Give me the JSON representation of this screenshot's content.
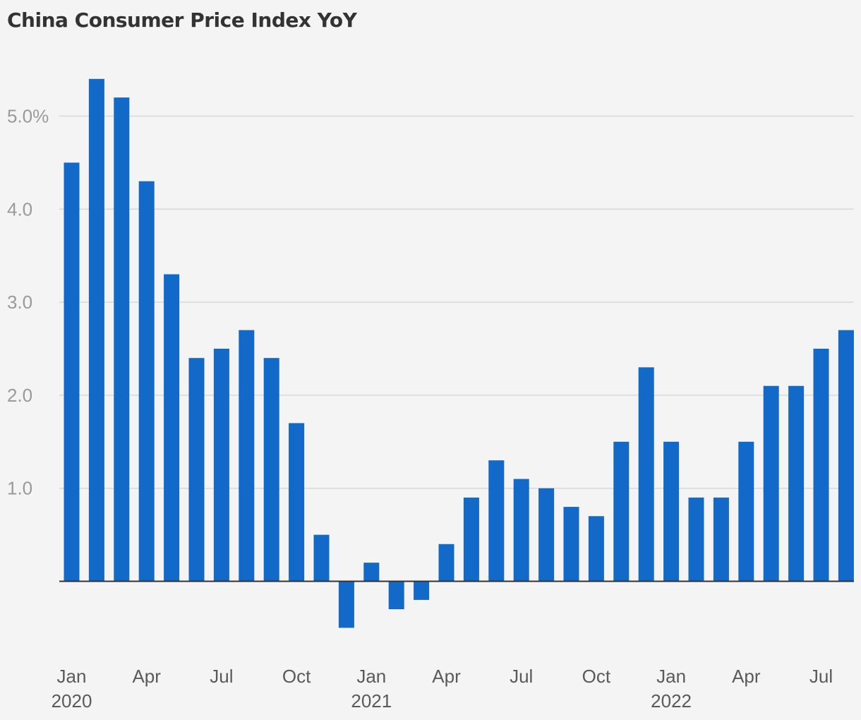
{
  "chart_data": {
    "type": "bar",
    "title": "China Consumer Price Index YoY",
    "xlabel": "",
    "ylabel": "",
    "color": "#1269c7",
    "ylim": [
      -0.8,
      5.9
    ],
    "y_ticks": [
      {
        "value": 1.0,
        "label": "1.0"
      },
      {
        "value": 2.0,
        "label": "2.0"
      },
      {
        "value": 3.0,
        "label": "3.0"
      },
      {
        "value": 4.0,
        "label": "4.0"
      },
      {
        "value": 5.0,
        "label": "5.0%"
      }
    ],
    "categories": [
      "2020-01",
      "2020-02",
      "2020-03",
      "2020-04",
      "2020-05",
      "2020-06",
      "2020-07",
      "2020-08",
      "2020-09",
      "2020-10",
      "2020-11",
      "2020-12",
      "2021-01",
      "2021-02",
      "2021-03",
      "2021-04",
      "2021-05",
      "2021-06",
      "2021-07",
      "2021-08",
      "2021-09",
      "2021-10",
      "2021-11",
      "2021-12",
      "2022-01",
      "2022-02",
      "2022-03",
      "2022-04",
      "2022-05",
      "2022-06",
      "2022-07",
      "2022-08"
    ],
    "values": [
      4.5,
      5.4,
      5.2,
      4.3,
      3.3,
      2.4,
      2.5,
      2.7,
      2.4,
      1.7,
      0.5,
      -0.5,
      0.2,
      -0.3,
      -0.2,
      0.4,
      0.9,
      1.3,
      1.1,
      1.0,
      0.8,
      0.7,
      1.5,
      2.3,
      1.5,
      0.9,
      0.9,
      1.5,
      2.1,
      2.1,
      2.5,
      2.7
    ],
    "x_ticks": [
      {
        "index": 0,
        "label": "Jan",
        "year": "2020"
      },
      {
        "index": 3,
        "label": "Apr"
      },
      {
        "index": 6,
        "label": "Jul"
      },
      {
        "index": 9,
        "label": "Oct"
      },
      {
        "index": 12,
        "label": "Jan",
        "year": "2021"
      },
      {
        "index": 15,
        "label": "Apr"
      },
      {
        "index": 18,
        "label": "Jul"
      },
      {
        "index": 21,
        "label": "Oct"
      },
      {
        "index": 24,
        "label": "Jan",
        "year": "2022"
      },
      {
        "index": 27,
        "label": "Apr"
      },
      {
        "index": 30,
        "label": "Jul"
      }
    ]
  }
}
